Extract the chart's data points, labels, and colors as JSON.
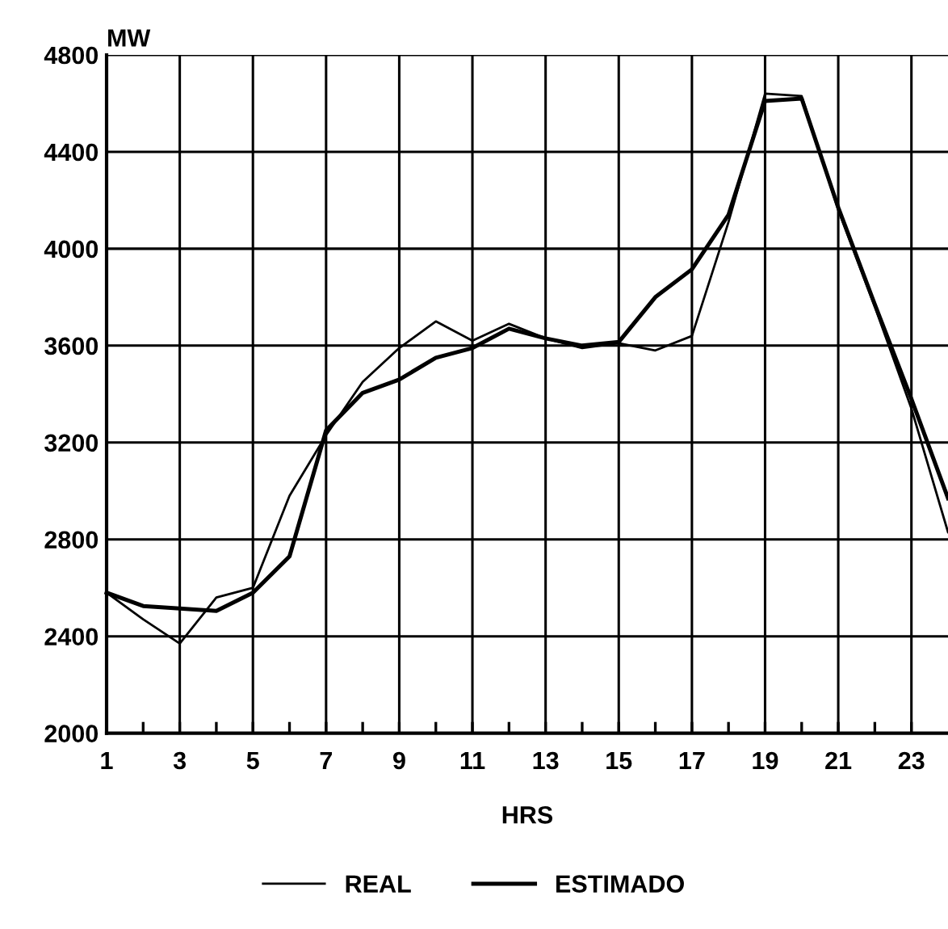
{
  "chart_data": {
    "type": "line",
    "xlabel": "HRS",
    "ylabel": "MW",
    "x": [
      1,
      2,
      3,
      4,
      5,
      6,
      7,
      8,
      9,
      10,
      11,
      12,
      13,
      14,
      15,
      16,
      17,
      18,
      19,
      20,
      21,
      22,
      23,
      24
    ],
    "series": [
      {
        "name": "REAL",
        "color": "#000000",
        "values": [
          2580,
          2470,
          2370,
          2560,
          2600,
          2980,
          3230,
          3450,
          3590,
          3700,
          3620,
          3690,
          3630,
          3590,
          3610,
          3580,
          3640,
          4110,
          4640,
          4630,
          4160,
          3760,
          3340,
          2830
        ]
      },
      {
        "name": "ESTIMADO",
        "color": "#000000",
        "values": [
          2580,
          2525,
          2515,
          2505,
          2580,
          2730,
          3250,
          3405,
          3460,
          3550,
          3590,
          3670,
          3630,
          3600,
          3615,
          3800,
          3915,
          4140,
          4610,
          4620,
          4170,
          3770,
          3380,
          2970
        ]
      }
    ],
    "xlim": [
      1,
      24
    ],
    "xticks": [
      1,
      {
        "value": 2,
        "label": null
      },
      3,
      {
        "value": 4,
        "label": null
      },
      5,
      {
        "value": 6,
        "label": null
      },
      7,
      {
        "value": 8,
        "label": null
      },
      9,
      {
        "value": 10,
        "label": null
      },
      11,
      {
        "value": 12,
        "label": null
      },
      13,
      {
        "value": 14,
        "label": null
      },
      15,
      {
        "value": 16,
        "label": null
      },
      17,
      {
        "value": 18,
        "label": null
      },
      19,
      {
        "value": 20,
        "label": null
      },
      21,
      {
        "value": 22,
        "label": null
      },
      23
    ],
    "ylim": [
      2000,
      4800
    ],
    "yticks": [
      2000,
      2400,
      2800,
      3200,
      3600,
      4000,
      4400,
      4800
    ],
    "grid": true,
    "legend": "bottom",
    "marker": "none",
    "line_style": "solid"
  }
}
